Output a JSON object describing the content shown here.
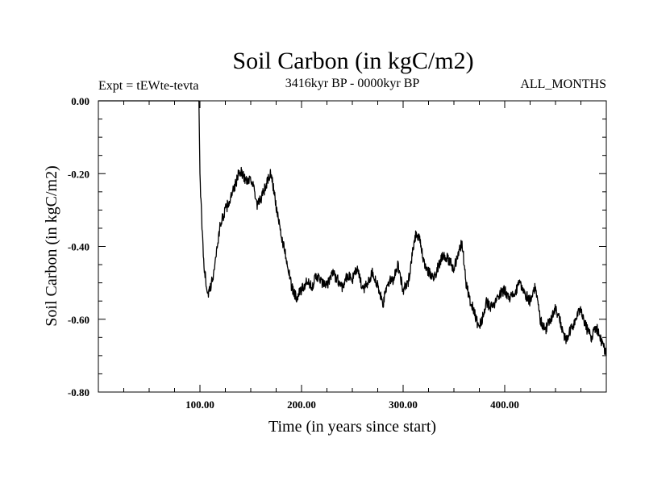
{
  "chart_data": {
    "type": "line",
    "title": "Soil Carbon (in kgC/m2)",
    "subtitle_left": "Expt = tEWte-tevta",
    "subtitle_center": "3416kyr BP - 0000kyr BP",
    "subtitle_right": "ALL_MONTHS",
    "xlabel": "Time (in years since start)",
    "ylabel": "Soil Carbon (in kgC/m2)",
    "xlim": [
      0,
      500
    ],
    "ylim": [
      -0.8,
      0.0
    ],
    "x_ticks": [
      100,
      200,
      300,
      400
    ],
    "x_tick_labels": [
      "100.00",
      "200.00",
      "300.00",
      "400.00"
    ],
    "y_ticks": [
      0.0,
      -0.2,
      -0.4,
      -0.6,
      -0.8
    ],
    "y_tick_labels": [
      "0.00",
      "-0.20",
      "-0.40",
      "-0.60",
      "-0.80"
    ],
    "grid": false,
    "series": [
      {
        "name": "Soil Carbon",
        "color": "#000000",
        "x": [
          0,
          99,
          100,
          102,
          104,
          106,
          108,
          110,
          113,
          116,
          120,
          125,
          130,
          135,
          138,
          140,
          143,
          146,
          150,
          153,
          156,
          160,
          164,
          168,
          170,
          173,
          176,
          180,
          185,
          190,
          195,
          200,
          205,
          210,
          215,
          220,
          225,
          230,
          235,
          240,
          245,
          250,
          255,
          260,
          265,
          270,
          275,
          280,
          285,
          290,
          295,
          300,
          305,
          310,
          313,
          316,
          320,
          325,
          330,
          335,
          340,
          345,
          350,
          355,
          358,
          362,
          366,
          370,
          374,
          378,
          382,
          386,
          390,
          395,
          400,
          405,
          410,
          415,
          420,
          425,
          430,
          435,
          440,
          445,
          450,
          455,
          460,
          465,
          470,
          475,
          480,
          485,
          490,
          495,
          500
        ],
        "y": [
          0.0,
          0.0,
          -0.2,
          -0.35,
          -0.45,
          -0.5,
          -0.53,
          -0.52,
          -0.48,
          -0.42,
          -0.34,
          -0.3,
          -0.27,
          -0.23,
          -0.2,
          -0.19,
          -0.21,
          -0.22,
          -0.21,
          -0.24,
          -0.29,
          -0.27,
          -0.24,
          -0.21,
          -0.2,
          -0.25,
          -0.31,
          -0.37,
          -0.43,
          -0.51,
          -0.54,
          -0.52,
          -0.5,
          -0.51,
          -0.48,
          -0.5,
          -0.51,
          -0.47,
          -0.49,
          -0.51,
          -0.48,
          -0.49,
          -0.46,
          -0.52,
          -0.5,
          -0.47,
          -0.51,
          -0.56,
          -0.5,
          -0.49,
          -0.45,
          -0.52,
          -0.5,
          -0.4,
          -0.36,
          -0.38,
          -0.44,
          -0.47,
          -0.49,
          -0.45,
          -0.42,
          -0.44,
          -0.46,
          -0.41,
          -0.39,
          -0.5,
          -0.55,
          -0.58,
          -0.62,
          -0.6,
          -0.55,
          -0.57,
          -0.56,
          -0.53,
          -0.52,
          -0.54,
          -0.53,
          -0.5,
          -0.53,
          -0.55,
          -0.51,
          -0.6,
          -0.63,
          -0.6,
          -0.57,
          -0.61,
          -0.66,
          -0.63,
          -0.6,
          -0.57,
          -0.62,
          -0.65,
          -0.62,
          -0.66,
          -0.7
        ]
      }
    ]
  }
}
